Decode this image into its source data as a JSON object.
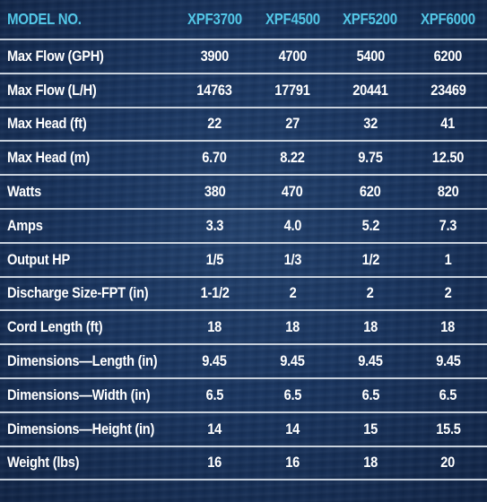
{
  "header": {
    "label": "MODEL NO.",
    "models": [
      "XPF3700",
      "XPF4500",
      "XPF5200",
      "XPF6000"
    ]
  },
  "rows": [
    {
      "label": "Max Flow (GPH)",
      "values": [
        "3900",
        "4700",
        "5400",
        "6200"
      ]
    },
    {
      "label": "Max Flow (L/H)",
      "values": [
        "14763",
        "17791",
        "20441",
        "23469"
      ]
    },
    {
      "label": "Max Head (ft)",
      "values": [
        "22",
        "27",
        "32",
        "41"
      ]
    },
    {
      "label": "Max Head (m)",
      "values": [
        "6.70",
        "8.22",
        "9.75",
        "12.50"
      ]
    },
    {
      "label": "Watts",
      "values": [
        "380",
        "470",
        "620",
        "820"
      ]
    },
    {
      "label": "Amps",
      "values": [
        "3.3",
        "4.0",
        "5.2",
        "7.3"
      ]
    },
    {
      "label": "Output HP",
      "values": [
        "1/5",
        "1/3",
        "1/2",
        "1"
      ]
    },
    {
      "label": "Discharge Size-FPT (in)",
      "values": [
        "1-1/2",
        "2",
        "2",
        "2"
      ]
    },
    {
      "label": "Cord Length (ft)",
      "values": [
        "18",
        "18",
        "18",
        "18"
      ]
    },
    {
      "label": "Dimensions—Length (in)",
      "values": [
        "9.45",
        "9.45",
        "9.45",
        "9.45"
      ]
    },
    {
      "label": "Dimensions—Width (in)",
      "values": [
        "6.5",
        "6.5",
        "6.5",
        "6.5"
      ]
    },
    {
      "label": "Dimensions—Height (in)",
      "values": [
        "14",
        "14",
        "15",
        "15.5"
      ]
    },
    {
      "label": "Weight (lbs)",
      "values": [
        "16",
        "16",
        "18",
        "20"
      ]
    }
  ],
  "colors": {
    "header_text": "#53c6e6",
    "body_text": "#ffffff",
    "rule": "#c9d2dd",
    "background": "#193560"
  }
}
